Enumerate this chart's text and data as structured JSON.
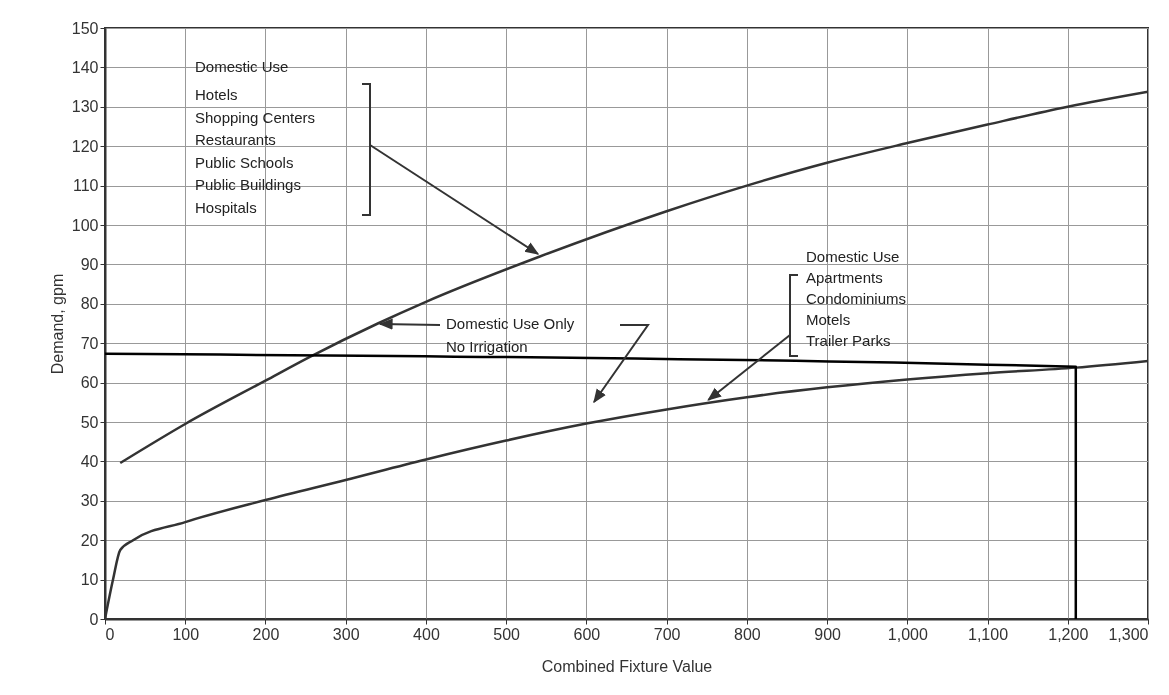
{
  "chart_data": {
    "type": "line",
    "xlabel": "Combined Fixture Value",
    "ylabel": "Demand, gpm",
    "xlim": [
      0,
      1300
    ],
    "ylim": [
      0,
      150
    ],
    "xticks": [
      0,
      100,
      200,
      300,
      400,
      500,
      600,
      700,
      800,
      900,
      {
        "value": 1000,
        "label": "1,000"
      },
      {
        "value": 1100,
        "label": "1,100"
      },
      {
        "value": 1200,
        "label": "1,200"
      },
      {
        "value": 1300,
        "label": "1,300"
      }
    ],
    "yticks": [
      0,
      10,
      20,
      30,
      40,
      50,
      60,
      70,
      80,
      90,
      100,
      110,
      120,
      130,
      140,
      150
    ],
    "grid": true,
    "marker": "none",
    "line_style": "solid",
    "series": [
      {
        "color": "#333333",
        "x": [
          19,
          100,
          200,
          256,
          340,
          400,
          542,
          700,
          800,
          900,
          1000,
          1100,
          1200,
          1300
        ],
        "values": [
          39.6,
          49.5,
          60.5,
          66.6,
          75,
          80.5,
          92,
          103.5,
          110,
          115.8,
          120.8,
          125.5,
          130,
          133.8
        ]
      },
      {
        "color": "#333333",
        "x": [
          0,
          10,
          19,
          35,
          100,
          200,
          300,
          400,
          500,
          600,
          700,
          800,
          900,
          1000,
          1100,
          1210,
          1300
        ],
        "values": [
          0,
          10,
          17.5,
          20,
          24.6,
          30.2,
          35.3,
          40.5,
          45.3,
          49.6,
          53.2,
          56.3,
          58.8,
          60.8,
          62.4,
          63.8,
          65.5
        ]
      },
      {
        "color": "#000000",
        "x": [
          0,
          1210,
          1210
        ],
        "values": [
          67.3,
          64,
          0
        ]
      }
    ],
    "annotations": [
      "Domestic Use",
      "Hotels\nShopping Centers\nRestaurants\nPublic Schools\nPublic Buildings\nHospitals",
      "Domestic Use Only\nNo Irrigation",
      {
        "text": "Domestic Use\nApartments\nCondominiums\nMotels\nTrailer Parks",
        "x": 752,
        "y": 55.6
      }
    ]
  }
}
